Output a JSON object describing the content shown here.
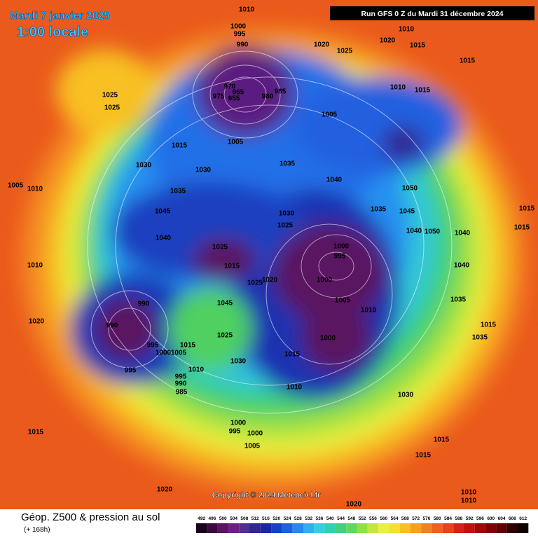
{
  "header": {
    "date": "Mardi 7 janvier 2025",
    "time": "1:00 locale",
    "run": "Run GFS 0 Z du Mardi 31 décembre 2024"
  },
  "footer": {
    "copyright": "Copyright © 2024 Meteociel.fr",
    "product": "Géop. Z500 & pression au sol",
    "lead": "(+ 168h)"
  },
  "legend": {
    "ticks": [
      492,
      496,
      500,
      504,
      508,
      512,
      516,
      520,
      524,
      528,
      532,
      536,
      540,
      544,
      548,
      552,
      556,
      560,
      564,
      568,
      572,
      576,
      580,
      584,
      588,
      592,
      596,
      600,
      604,
      608,
      612
    ],
    "colors": [
      "#1a001a",
      "#3c0a3c",
      "#5a1460",
      "#702080",
      "#503090",
      "#302890",
      "#1828a8",
      "#1840c8",
      "#2060e0",
      "#2888f0",
      "#30b0f0",
      "#30d0e0",
      "#30d0b0",
      "#40d080",
      "#60d860",
      "#90e040",
      "#c0e840",
      "#e8f040",
      "#f8e030",
      "#f8c020",
      "#f8a020",
      "#f08020",
      "#f06020",
      "#e84020",
      "#d82020",
      "#c01010",
      "#a00808",
      "#800000",
      "#600000",
      "#300000",
      "#100000"
    ]
  },
  "isobars": [
    1010,
    1000,
    995,
    990,
    1020,
    1025,
    1020,
    1010,
    1015,
    1015,
    970,
    965,
    955,
    975,
    980,
    985,
    1005,
    1010,
    1015,
    1025,
    1025,
    1015,
    1005,
    1030,
    1030,
    1035,
    1040,
    1050,
    1005,
    1010,
    1035,
    1045,
    1035,
    1045,
    1030,
    1025,
    1040,
    1025,
    1000,
    995,
    1015,
    1020,
    1025,
    1000,
    1005,
    1010,
    1010,
    990,
    990,
    995,
    1000,
    1005,
    1015,
    1045,
    1025,
    1030,
    1015,
    1000,
    1010,
    1020,
    995,
    995,
    990,
    985,
    1010,
    1030,
    1000,
    995,
    1000,
    1005,
    1015,
    1015,
    1015,
    1020,
    1020,
    1010,
    1010,
    1040,
    1035,
    1015,
    1035,
    1040,
    1050,
    1040,
    1015,
    1015
  ]
}
